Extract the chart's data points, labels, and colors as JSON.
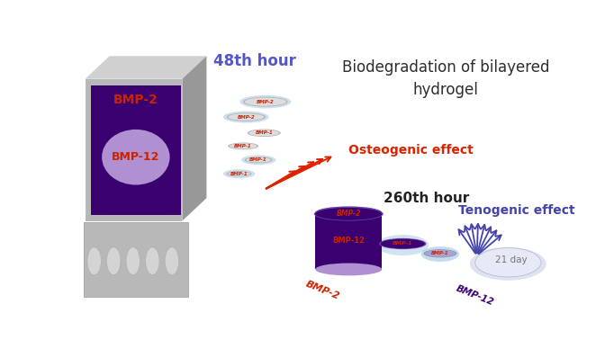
{
  "title": "Biodegradation of bilayered\nhydrogel",
  "title_color": "#2d2d2d",
  "title_fontsize": 12,
  "label_48h": "48th hour",
  "label_260h": "260th hour",
  "label_osteogenic": "Osteogenic effect",
  "label_tenogenic": "Tenogenic effect",
  "label_bmp2": "BMP-2",
  "label_bmp12": "BMP-12",
  "label_21day": "21 day",
  "color_bmp2_text": "#cc2200",
  "color_48h": "#5555cc",
  "color_osteogenic": "#dd2200",
  "color_tenogenic": "#4444aa",
  "color_box_face": "#b8b8b8",
  "color_box_top": "#d0d0d0",
  "color_box_side": "#989898",
  "color_purple_deep": "#3a0070",
  "color_purple_mid": "#6644aa",
  "color_purple_light": "#b090d0",
  "color_blue_light": "#90b8e0",
  "color_silver_rim": "#b0b0b0",
  "color_silver_face": "#e0e0e0",
  "bg_color": "#ffffff"
}
